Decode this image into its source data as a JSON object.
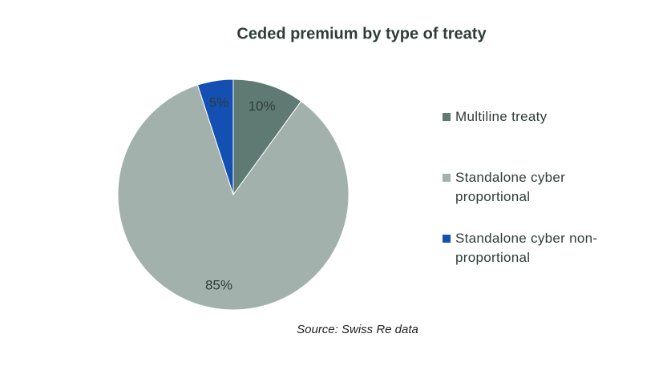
{
  "chart_data": {
    "type": "pie",
    "title": "Ceded premium by type of treaty",
    "categories": [
      "Multiline treaty",
      "Standalone cyber proportional",
      "Standalone cyber non-proportional"
    ],
    "values": [
      10,
      85,
      5
    ],
    "value_labels": [
      "10%",
      "85%",
      "5%"
    ],
    "colors": [
      "#5f7a72",
      "#a3b1ad",
      "#1450b4"
    ],
    "legend": "right",
    "source": "Source: Swiss Re data"
  }
}
